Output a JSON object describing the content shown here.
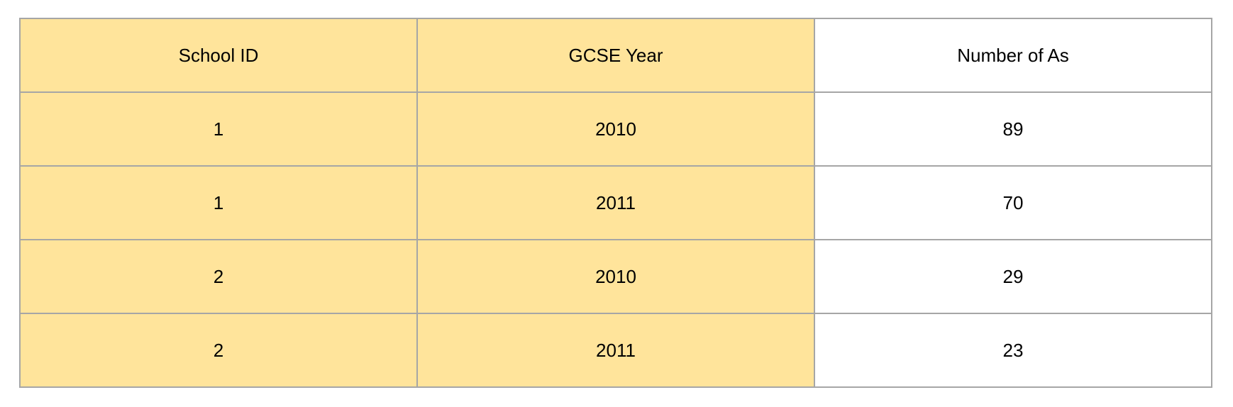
{
  "table": {
    "headers": [
      "School ID",
      "GCSE Year",
      "Number of As"
    ],
    "rows": [
      [
        "1",
        "2010",
        "89"
      ],
      [
        "1",
        "2011",
        "70"
      ],
      [
        "2",
        "2010",
        "29"
      ],
      [
        "2",
        "2011",
        "23"
      ]
    ]
  },
  "colors": {
    "key_column_fill": "#ffe49b",
    "value_column_fill": "#ffffff",
    "border": "#a6a6a6"
  }
}
